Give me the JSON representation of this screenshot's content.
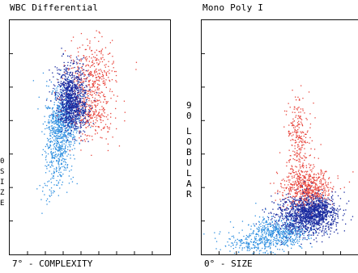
{
  "chart_data": [
    {
      "type": "scatter",
      "title": "WBC Differential",
      "xlabel": "7° - COMPLEXITY",
      "ylabel_fragments": [
        "0",
        "S",
        "I",
        "Z",
        "E"
      ],
      "xlim": [
        0,
        100
      ],
      "ylim": [
        0,
        100
      ],
      "grid": false,
      "series": [
        {
          "color": "#e8453c",
          "clusters": [
            {
              "cx": 50,
              "cy": 68,
              "sx": 8,
              "sy": 10,
              "n": 420
            },
            {
              "cx": 53,
              "cy": 80,
              "sx": 6,
              "sy": 5,
              "n": 120
            },
            {
              "cx": 52,
              "cy": 60,
              "sx": 5,
              "sy": 3,
              "n": 80
            }
          ]
        },
        {
          "color": "#1a2ba0",
          "clusters": [
            {
              "cx": 38,
              "cy": 68,
              "sx": 5,
              "sy": 7,
              "n": 700
            },
            {
              "cx": 40,
              "cy": 62,
              "sx": 4,
              "sy": 4,
              "n": 300
            }
          ]
        },
        {
          "color": "#2e8fe0",
          "clusters": [
            {
              "cx": 33,
              "cy": 58,
              "sx": 5,
              "sy": 7,
              "n": 600
            },
            {
              "cx": 30,
              "cy": 45,
              "sx": 4,
              "sy": 8,
              "n": 300
            },
            {
              "cx": 25,
              "cy": 30,
              "sx": 4,
              "sy": 5,
              "n": 40
            }
          ]
        }
      ]
    },
    {
      "type": "scatter",
      "title": "Mono Poly I",
      "xlabel": "0° - SIZE",
      "ylabel_fragments": [
        "9",
        "0",
        "",
        "L",
        "O",
        "B",
        "U",
        "L",
        "A",
        "R"
      ],
      "xlim": [
        0,
        100
      ],
      "ylim": [
        0,
        100
      ],
      "grid": false,
      "series": [
        {
          "color": "#e8453c",
          "clusters": [
            {
              "cx": 68,
              "cy": 28,
              "sx": 8,
              "sy": 4,
              "n": 600
            },
            {
              "cx": 62,
              "cy": 45,
              "sx": 4,
              "sy": 10,
              "n": 220
            },
            {
              "cx": 60,
              "cy": 55,
              "sx": 3,
              "sy": 6,
              "n": 60
            }
          ]
        },
        {
          "color": "#1a2ba0",
          "clusters": [
            {
              "cx": 67,
              "cy": 17,
              "sx": 10,
              "sy": 4,
              "n": 1100
            },
            {
              "cx": 74,
              "cy": 19,
              "sx": 5,
              "sy": 3,
              "n": 300
            }
          ]
        },
        {
          "color": "#2e8fe0",
          "clusters": [
            {
              "cx": 50,
              "cy": 10,
              "sx": 10,
              "sy": 3,
              "n": 500
            },
            {
              "cx": 32,
              "cy": 5,
              "sx": 10,
              "sy": 2.5,
              "n": 220
            }
          ]
        }
      ]
    }
  ]
}
